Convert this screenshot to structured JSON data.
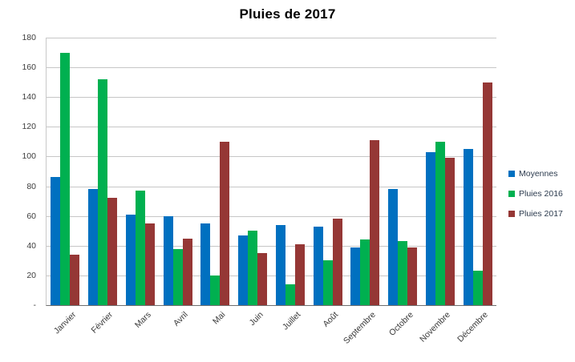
{
  "title": "Pluies de 2017",
  "chart_data": {
    "type": "bar",
    "title": "Pluies de 2017",
    "categories": [
      "Janvier",
      "Février",
      "Mars",
      "Avril",
      "Mai",
      "Juin",
      "Juillet",
      "Août",
      "Septembre",
      "Octobre",
      "Novembre",
      "Décembre"
    ],
    "series": [
      {
        "name": "Moyennes",
        "color": "#0070C0",
        "values": [
          86,
          78,
          61,
          60,
          55,
          47,
          54,
          53,
          39,
          78,
          103,
          105
        ]
      },
      {
        "name": "Pluies 2016",
        "color": "#00B050",
        "values": [
          170,
          152,
          77,
          38,
          20,
          50,
          14,
          30,
          44,
          43,
          110,
          23
        ]
      },
      {
        "name": "Pluies 2017",
        "color": "#953735",
        "values": [
          34,
          72,
          55,
          45,
          110,
          35,
          41,
          58,
          111,
          39,
          99,
          150
        ]
      }
    ],
    "xlabel": "",
    "ylabel": "",
    "ylim": [
      0,
      180
    ],
    "y_tick_step": 20,
    "y_tick_labels": [
      "180",
      "160",
      "140",
      "120",
      "100",
      "80",
      "60",
      "40",
      "20",
      "-"
    ],
    "grid": true,
    "legend_position": "right",
    "colors": {
      "gridline": "#c6c6c6",
      "axis_line": "#6e6e6e",
      "title_text": "#000000",
      "legend_text": "#2b3a4d"
    }
  }
}
